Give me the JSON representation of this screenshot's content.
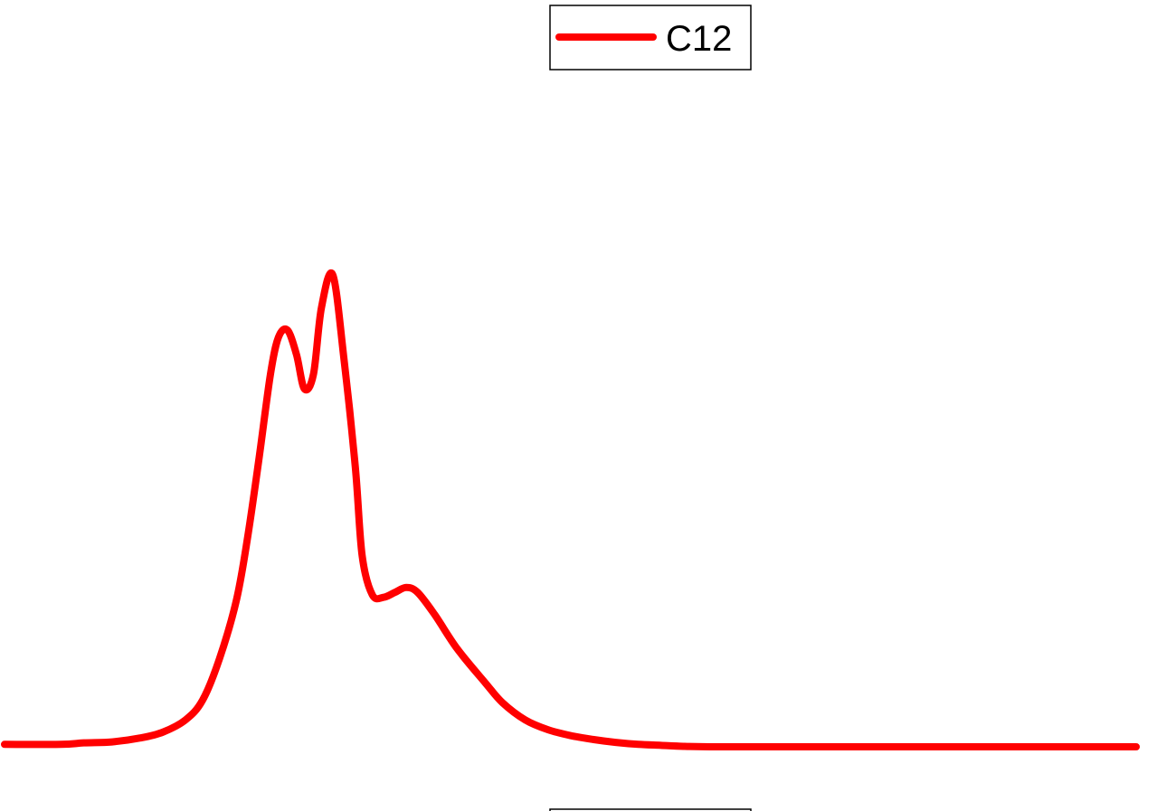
{
  "chart_data": {
    "type": "line",
    "title": "",
    "xlabel": "",
    "ylabel": "",
    "xlim": [
      0,
      100
    ],
    "ylim": [
      0,
      100
    ],
    "grid": false,
    "legend": {
      "placement": "top-center",
      "entries": [
        "C12"
      ]
    },
    "series": [
      {
        "name": "C12",
        "color": "#ff0000",
        "x": [
          0,
          5,
          7,
          9.5,
          12,
          14,
          16,
          17.5,
          19,
          20.5,
          21.5,
          22.5,
          23.5,
          24.2,
          25,
          25.8,
          26.5,
          27.3,
          28,
          29,
          30,
          31,
          31.6,
          32.5,
          33.5,
          34.5,
          35.5,
          36.5,
          38,
          40,
          42.5,
          44,
          46,
          48,
          50,
          52,
          54,
          56,
          58,
          60,
          63,
          70,
          80,
          90,
          100
        ],
        "y": [
          0.5,
          0.5,
          0.8,
          1,
          1.8,
          3,
          5.5,
          9.5,
          18,
          30,
          43,
          59,
          76,
          83.5,
          85,
          80,
          73,
          76,
          89.5,
          96.3,
          79,
          57,
          39,
          31,
          30.5,
          31.5,
          32.5,
          31.5,
          27,
          20,
          13,
          9,
          5.5,
          3.5,
          2.3,
          1.5,
          0.9,
          0.5,
          0.3,
          0.1,
          0,
          0,
          0,
          0,
          0
        ]
      }
    ]
  }
}
